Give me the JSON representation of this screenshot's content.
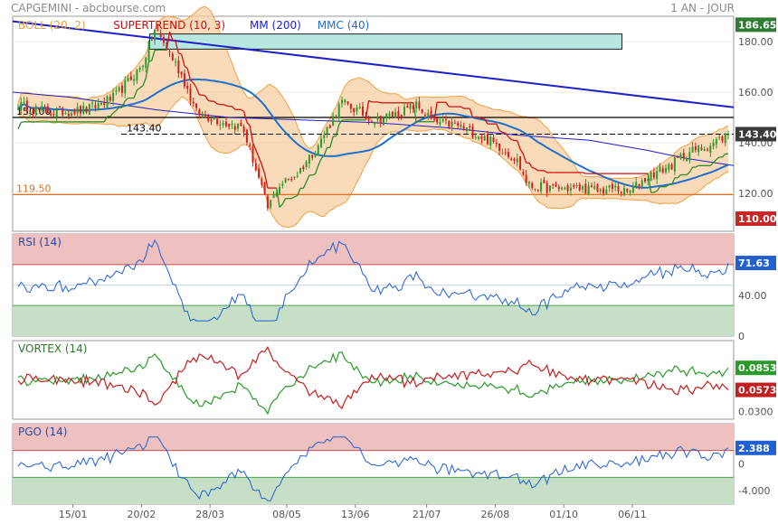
{
  "header": {
    "left": "CAPGEMINI - abcbourse.com",
    "right": "1 AN - JOUR"
  },
  "colors": {
    "boll": "#f0a040",
    "boll_fill": "#f7cfa2",
    "supertrend": "#d01010",
    "supertrend_alt": "#2a8a2a",
    "mm": "#1f1fc8",
    "mmc": "#1f6fd0",
    "orange_line": "#e07020",
    "up_candle": "#2f9a2f",
    "down_candle": "#d02020",
    "zone_red": "#efc0c0",
    "zone_green": "#c7dfc7",
    "rsi": "#2060d0",
    "vortex_pos": "#2a9a2a",
    "vortex_neg": "#c02020",
    "pgo": "#2060d0",
    "rect": "#b8e6e0"
  },
  "chart_data": [
    {
      "type": "candlestick",
      "name": "price",
      "legend": [
        {
          "label": "BOLL (20, 2)",
          "color": "#e8a040"
        },
        {
          "label": "SUPERTREND (10, 3)",
          "color": "#c01010"
        },
        {
          "label": "MM (200)",
          "color": "#1f1fc8"
        },
        {
          "label": "MMC (40)",
          "color": "#1f6fd0"
        }
      ],
      "y_ticks": [
        120,
        140,
        160,
        180
      ],
      "y_tick_labels": [
        "120.00",
        "140.00",
        "160.00",
        "180.00"
      ],
      "ylim": [
        105,
        190
      ],
      "last_price": 143.4,
      "badges": [
        {
          "value": 186.65,
          "label": "186.65",
          "color": "#2e7d32"
        },
        {
          "value": 143.4,
          "label": "143.40",
          "color": "#3a3a3a"
        },
        {
          "value": 110.0,
          "label": "110.00",
          "color": "#c62828"
        }
      ],
      "hlines": [
        {
          "value": 150.0,
          "label": "150.00",
          "color": "#000000"
        },
        {
          "value": 119.5,
          "label": "119.50",
          "color": "#e07020"
        }
      ],
      "last_line_label": "143.40",
      "trendline": [
        {
          "t": 0.0,
          "v": 188
        },
        {
          "t": 1.0,
          "v": 154
        }
      ],
      "mm200": [
        [
          0.0,
          160
        ],
        [
          0.08,
          158
        ],
        [
          0.2,
          153
        ],
        [
          0.3,
          150
        ],
        [
          0.4,
          149
        ],
        [
          0.5,
          148
        ],
        [
          0.6,
          146
        ],
        [
          0.7,
          143
        ],
        [
          0.8,
          141
        ],
        [
          0.88,
          137
        ],
        [
          0.93,
          134
        ],
        [
          1.0,
          131
        ]
      ],
      "rect_zone": {
        "t0": 0.19,
        "t1": 0.845,
        "v0": 177,
        "v1": 183
      }
    },
    {
      "type": "line",
      "name": "rsi",
      "title": "RSI (14)",
      "ylim": [
        0,
        100
      ],
      "y_ticks": [
        0,
        40
      ],
      "y_tick_labels": [
        "0",
        "40.00"
      ],
      "zone_high": [
        70,
        100
      ],
      "zone_low": [
        0,
        30
      ],
      "mid_line": 50,
      "last": 71.63,
      "last_label": "71.63"
    },
    {
      "type": "line",
      "name": "vortex",
      "title": "VORTEX (14)",
      "ylim": [
        0.02,
        0.12
      ],
      "y_ticks": [
        0.03
      ],
      "y_tick_labels": [
        "0.0300"
      ],
      "last_pos": 0.0853,
      "last_pos_label": "0.0853",
      "last_neg": 0.0573,
      "last_neg_label": "0.0573"
    },
    {
      "type": "line",
      "name": "pgo",
      "title": "PGO (14)",
      "ylim": [
        -6,
        6
      ],
      "y_ticks": [
        0,
        -4
      ],
      "y_tick_labels": [
        "0",
        "-4.000"
      ],
      "zone_high": [
        2,
        6
      ],
      "zone_low": [
        -6,
        -2
      ],
      "last": 2.388,
      "last_label": "2.388"
    }
  ],
  "x_labels": [
    "15/01",
    "20/02",
    "28/03",
    "08/05",
    "13/06",
    "21/07",
    "26/08",
    "01/10",
    "06/11"
  ]
}
